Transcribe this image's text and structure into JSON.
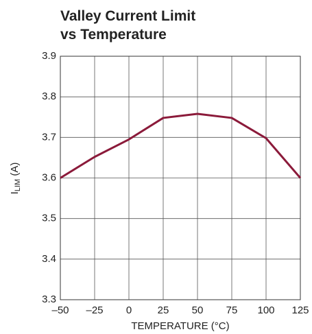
{
  "chart_data": {
    "type": "line",
    "title": [
      "Valley Current Limit",
      "vs Temperature"
    ],
    "xlabel": "TEMPERATURE (°C)",
    "ylabel": [
      "I",
      "LIM",
      " (A)"
    ],
    "x": [
      -50,
      -25,
      0,
      25,
      50,
      75,
      100,
      125
    ],
    "values": [
      3.6,
      3.652,
      3.695,
      3.748,
      3.758,
      3.748,
      3.698,
      3.6
    ],
    "color": "#8b1a3a",
    "xlim": [
      -50,
      125
    ],
    "xticks": [
      {
        "value": -50,
        "label": "–50"
      },
      {
        "value": -25,
        "label": "–25"
      },
      0,
      25,
      50,
      75,
      100,
      125
    ],
    "ylim": [
      3.3,
      3.9
    ],
    "yticks": [
      3.3,
      3.4,
      3.5,
      3.6,
      3.7,
      3.8,
      3.9
    ],
    "grid": true
  }
}
